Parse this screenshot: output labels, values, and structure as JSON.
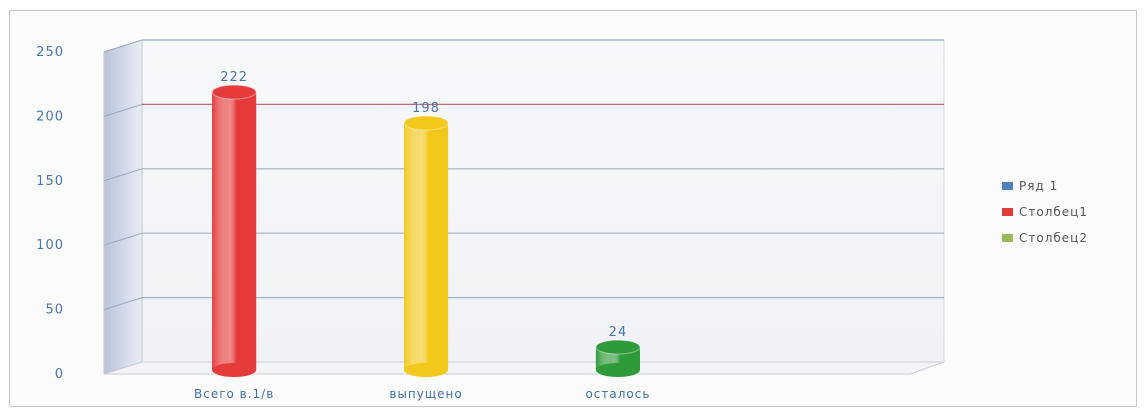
{
  "chart_data": {
    "type": "bar",
    "categories": [
      "Всего в.1/в",
      "выпущено",
      "осталось"
    ],
    "yticks": [
      "0",
      "50",
      "100",
      "150",
      "200",
      "250"
    ],
    "ylim": [
      0,
      250
    ],
    "grid": true,
    "legend_position": "right",
    "series": [
      {
        "name": "Ряд 1",
        "color": "#4f81bd",
        "values": [
          222,
          null,
          null
        ],
        "labels": [
          "222",
          "",
          ""
        ]
      },
      {
        "name": "Столбец1",
        "color": "#e03b3b",
        "values": [
          null,
          198,
          null
        ],
        "labels": [
          "",
          "198",
          ""
        ]
      },
      {
        "name": "Столбец2",
        "color": "#9bbb59",
        "values": [
          null,
          null,
          24
        ],
        "labels": [
          "",
          "",
          "24"
        ]
      }
    ],
    "bar_colors": [
      "#e53b3b",
      "#f2c81a",
      "#2f9a3a"
    ]
  }
}
